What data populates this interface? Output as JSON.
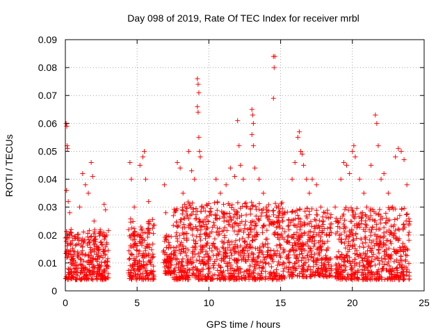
{
  "chart_data": {
    "type": "scatter",
    "title": "Day 098 of 2019, Rate Of TEC Index for receiver mrbl",
    "xlabel": "GPS time / hours",
    "ylabel": "ROTI / TECUs",
    "xlim": [
      0,
      25
    ],
    "ylim": [
      0,
      0.09
    ],
    "xticks": [
      "0",
      "5",
      "10",
      "15",
      "20",
      "25"
    ],
    "yticks": [
      "0",
      "0.01",
      "0.02",
      "0.03",
      "0.04",
      "0.05",
      "0.06",
      "0.07",
      "0.08",
      "0.09"
    ],
    "grid": true,
    "marker": "+",
    "color": "#ff0000",
    "series": [
      {
        "name": "ROTI",
        "points": [
          [
            0.05,
            0.06
          ],
          [
            0.1,
            0.059
          ],
          [
            0.12,
            0.052
          ],
          [
            0.15,
            0.051
          ],
          [
            0.08,
            0.036
          ],
          [
            0.2,
            0.032
          ],
          [
            0.3,
            0.028
          ],
          [
            0.4,
            0.022
          ],
          [
            0.5,
            0.018
          ],
          [
            0.1,
            0.012
          ],
          [
            0.2,
            0.008
          ],
          [
            0.3,
            0.006
          ],
          [
            0.6,
            0.013
          ],
          [
            0.8,
            0.009
          ],
          [
            1.0,
            0.03
          ],
          [
            1.2,
            0.042
          ],
          [
            1.4,
            0.038
          ],
          [
            1.6,
            0.035
          ],
          [
            1.8,
            0.046
          ],
          [
            1.9,
            0.041
          ],
          [
            2.0,
            0.025
          ],
          [
            2.2,
            0.015
          ],
          [
            2.4,
            0.012
          ],
          [
            2.6,
            0.02
          ],
          [
            2.7,
            0.031
          ],
          [
            2.8,
            0.029
          ],
          [
            2.9,
            0.008
          ],
          [
            4.5,
            0.046
          ],
          [
            4.6,
            0.04
          ],
          [
            4.8,
            0.03
          ],
          [
            5.0,
            0.02
          ],
          [
            5.2,
            0.045
          ],
          [
            5.4,
            0.048
          ],
          [
            5.5,
            0.05
          ],
          [
            5.6,
            0.04
          ],
          [
            5.8,
            0.032
          ],
          [
            6.0,
            0.012
          ],
          [
            5.3,
            0.009
          ],
          [
            4.9,
            0.006
          ],
          [
            6.9,
            0.038
          ],
          [
            7.0,
            0.028
          ],
          [
            7.2,
            0.01
          ],
          [
            7.4,
            0.007
          ],
          [
            7.8,
            0.046
          ],
          [
            8.0,
            0.044
          ],
          [
            8.2,
            0.035
          ],
          [
            8.4,
            0.03
          ],
          [
            8.6,
            0.05
          ],
          [
            8.8,
            0.043
          ],
          [
            9.0,
            0.04
          ],
          [
            9.2,
            0.076
          ],
          [
            9.25,
            0.074
          ],
          [
            9.3,
            0.071
          ],
          [
            9.2,
            0.066
          ],
          [
            9.25,
            0.064
          ],
          [
            9.3,
            0.055
          ],
          [
            9.35,
            0.05
          ],
          [
            9.4,
            0.048
          ],
          [
            9.5,
            0.03
          ],
          [
            9.8,
            0.02
          ],
          [
            10.0,
            0.012
          ],
          [
            10.5,
            0.04
          ],
          [
            10.8,
            0.035
          ],
          [
            11.0,
            0.028
          ],
          [
            11.2,
            0.038
          ],
          [
            11.5,
            0.044
          ],
          [
            11.8,
            0.041
          ],
          [
            12.0,
            0.061
          ],
          [
            12.1,
            0.052
          ],
          [
            12.2,
            0.045
          ],
          [
            12.4,
            0.04
          ],
          [
            12.6,
            0.03
          ],
          [
            12.8,
            0.02
          ],
          [
            13.0,
            0.065
          ],
          [
            13.05,
            0.063
          ],
          [
            13.1,
            0.06
          ],
          [
            13.0,
            0.056
          ],
          [
            13.1,
            0.052
          ],
          [
            13.2,
            0.044
          ],
          [
            13.5,
            0.04
          ],
          [
            13.8,
            0.035
          ],
          [
            14.0,
            0.03
          ],
          [
            14.2,
            0.025
          ],
          [
            14.5,
            0.084
          ],
          [
            14.6,
            0.084
          ],
          [
            14.55,
            0.08
          ],
          [
            14.5,
            0.069
          ],
          [
            14.7,
            0.03
          ],
          [
            14.8,
            0.02
          ],
          [
            15.0,
            0.012
          ],
          [
            15.8,
            0.04
          ],
          [
            16.0,
            0.046
          ],
          [
            16.2,
            0.055
          ],
          [
            16.3,
            0.057
          ],
          [
            16.4,
            0.05
          ],
          [
            16.5,
            0.049
          ],
          [
            16.6,
            0.045
          ],
          [
            16.8,
            0.04
          ],
          [
            17.0,
            0.035
          ],
          [
            17.2,
            0.04
          ],
          [
            17.5,
            0.038
          ],
          [
            17.8,
            0.03
          ],
          [
            18.0,
            0.025
          ],
          [
            18.4,
            0.02
          ],
          [
            18.8,
            0.03
          ],
          [
            19.2,
            0.04
          ],
          [
            19.4,
            0.046
          ],
          [
            19.6,
            0.045
          ],
          [
            19.8,
            0.042
          ],
          [
            20.0,
            0.05
          ],
          [
            20.1,
            0.052
          ],
          [
            20.2,
            0.048
          ],
          [
            20.5,
            0.04
          ],
          [
            20.8,
            0.035
          ],
          [
            21.0,
            0.03
          ],
          [
            21.3,
            0.045
          ],
          [
            21.6,
            0.063
          ],
          [
            21.7,
            0.06
          ],
          [
            21.8,
            0.052
          ],
          [
            22.0,
            0.04
          ],
          [
            22.2,
            0.042
          ],
          [
            22.5,
            0.035
          ],
          [
            22.8,
            0.03
          ],
          [
            23.0,
            0.048
          ],
          [
            23.2,
            0.051
          ],
          [
            23.4,
            0.05
          ],
          [
            23.6,
            0.047
          ],
          [
            23.8,
            0.038
          ],
          [
            23.9,
            0.02
          ]
        ]
      }
    ],
    "dense_bands": [
      {
        "x": [
          0.0,
          3.0
        ],
        "y": [
          0.004,
          0.022
        ]
      },
      {
        "x": [
          4.4,
          6.2
        ],
        "y": [
          0.004,
          0.026
        ]
      },
      {
        "x": [
          6.8,
          7.4
        ],
        "y": [
          0.006,
          0.02
        ]
      },
      {
        "x": [
          7.5,
          15.3
        ],
        "y": [
          0.004,
          0.032
        ]
      },
      {
        "x": [
          15.4,
          18.6
        ],
        "y": [
          0.005,
          0.03
        ]
      },
      {
        "x": [
          18.8,
          24.0
        ],
        "y": [
          0.004,
          0.03
        ]
      }
    ]
  }
}
